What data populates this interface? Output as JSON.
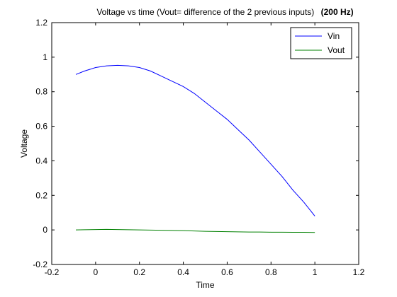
{
  "chart_data": {
    "type": "line",
    "title": "Voltage vs time (Vout= difference of the 2 previous inputs)",
    "title_suffix": "(200 Hz)",
    "xlabel": "Time",
    "ylabel": "Voltage",
    "xlim": [
      -0.2,
      1.2
    ],
    "ylim": [
      -0.2,
      1.2
    ],
    "x_ticks": [
      -0.2,
      0,
      0.2,
      0.4,
      0.6,
      0.8,
      1,
      1.2
    ],
    "x_tick_labels": [
      "-0.2",
      "0",
      "0.2",
      "0.4",
      "0.6",
      "0.8",
      "1",
      "1.2"
    ],
    "y_ticks": [
      -0.2,
      0,
      0.2,
      0.4,
      0.6,
      0.8,
      1,
      1.2
    ],
    "y_tick_labels": [
      "-0.2",
      "0",
      "0.2",
      "0.4",
      "0.6",
      "0.8",
      "1",
      "1.2"
    ],
    "grid": false,
    "legend_position": "top-right",
    "series": [
      {
        "name": "Vin",
        "color": "#0000ff",
        "x": [
          -0.09,
          -0.05,
          0,
          0.05,
          0.1,
          0.15,
          0.2,
          0.25,
          0.3,
          0.35,
          0.4,
          0.45,
          0.5,
          0.55,
          0.6,
          0.65,
          0.7,
          0.75,
          0.8,
          0.85,
          0.9,
          0.95,
          1.0
        ],
        "values": [
          0.9,
          0.92,
          0.94,
          0.95,
          0.953,
          0.95,
          0.94,
          0.92,
          0.89,
          0.86,
          0.83,
          0.79,
          0.74,
          0.69,
          0.64,
          0.58,
          0.52,
          0.45,
          0.38,
          0.31,
          0.23,
          0.16,
          0.08
        ]
      },
      {
        "name": "Vout",
        "color": "#008000",
        "x": [
          -0.09,
          -0.05,
          0,
          0.05,
          0.1,
          0.15,
          0.2,
          0.25,
          0.3,
          0.35,
          0.4,
          0.45,
          0.5,
          0.55,
          0.6,
          0.65,
          0.7,
          0.75,
          0.8,
          0.85,
          0.9,
          0.95,
          1.0
        ],
        "values": [
          0.0,
          0.001,
          0.002,
          0.003,
          0.002,
          0.001,
          0.0,
          -0.001,
          -0.002,
          -0.003,
          -0.004,
          -0.006,
          -0.008,
          -0.009,
          -0.01,
          -0.011,
          -0.012,
          -0.012,
          -0.013,
          -0.013,
          -0.014,
          -0.014,
          -0.015
        ]
      }
    ]
  }
}
